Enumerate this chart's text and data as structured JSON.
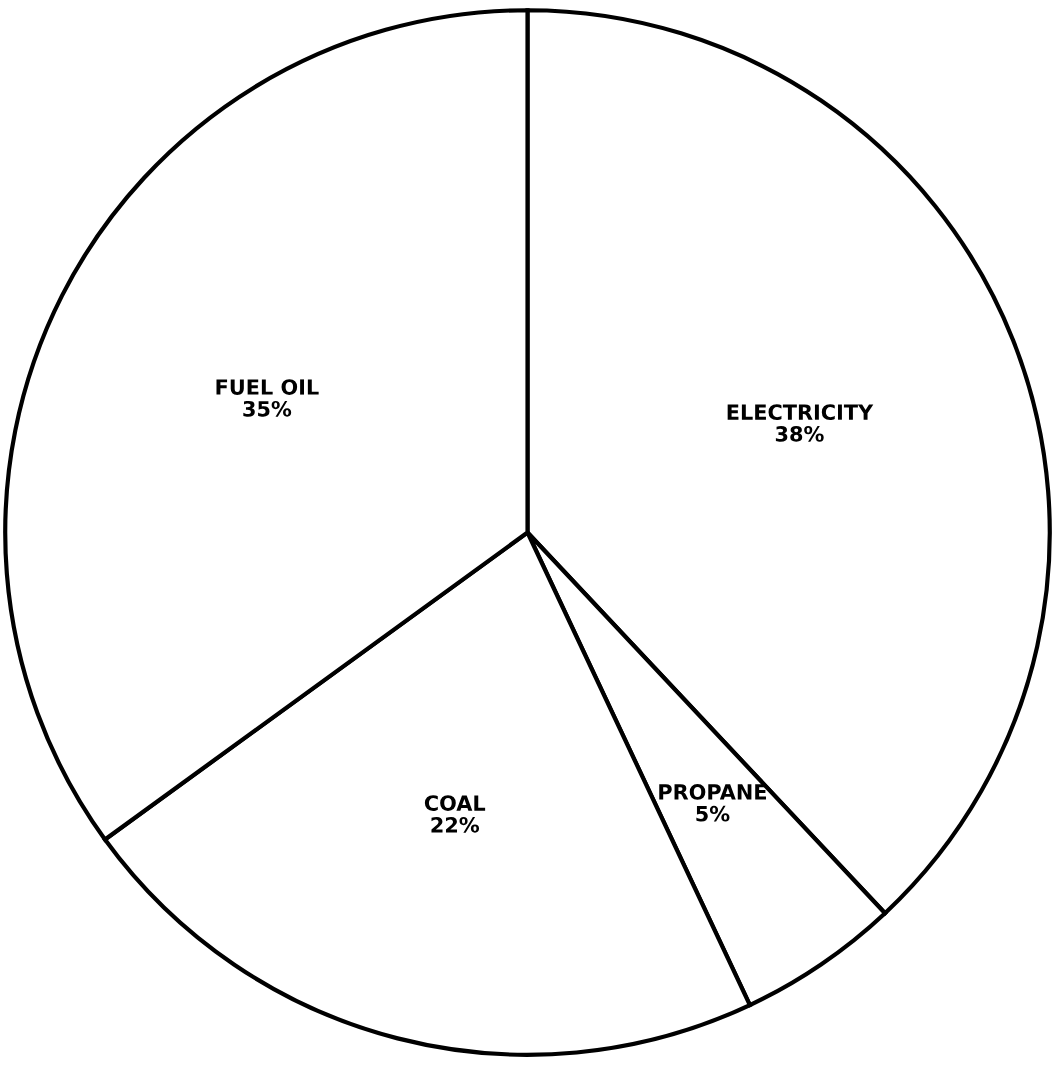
{
  "chart_data": {
    "type": "pie",
    "categories": [
      "ELECTRICITY",
      "PROPANE",
      "COAL",
      "FUEL OIL"
    ],
    "values": [
      38,
      5,
      22,
      35
    ],
    "value_labels": [
      "38%",
      "5%",
      "22%",
      "35%"
    ],
    "colors": [
      "#ffffff",
      "#ffffff",
      "#ffffff",
      "#ffffff"
    ]
  }
}
